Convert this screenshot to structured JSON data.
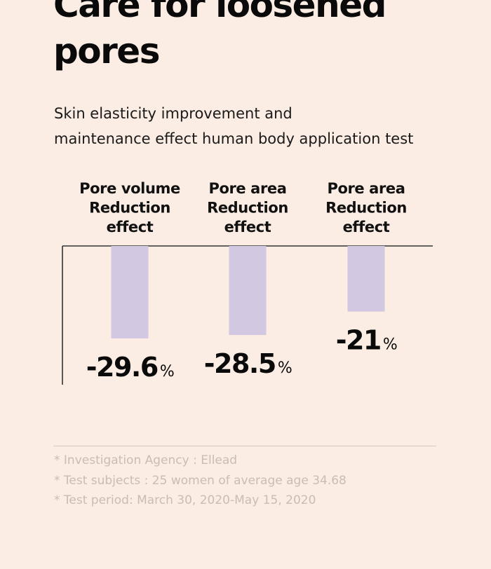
{
  "title_lines": [
    "Care for loosened",
    "pores"
  ],
  "subtitle_lines": [
    "Skin elasticity improvement and",
    "maintenance effect human body application test"
  ],
  "chart_data": {
    "type": "bar",
    "orientation": "downward",
    "categories": [
      [
        "Pore volume",
        "Reduction",
        "effect"
      ],
      [
        "Pore area",
        "Reduction",
        "effect"
      ],
      [
        "Pore area",
        "Reduction",
        "effect"
      ]
    ],
    "values": [
      -29.6,
      -28.5,
      -21
    ],
    "value_labels": [
      "-29.6",
      "-28.5",
      "-21"
    ],
    "unit": "%",
    "ylim": [
      -35,
      0
    ],
    "bar_color": "#d2c8e1",
    "axis_color": "#333333",
    "grid": false,
    "xlabel": "",
    "ylabel": ""
  },
  "notes": [
    "* Investigation Agency : Ellead",
    "* Test subjects : 25 women of average age 34.68",
    "* Test period: March 30, 2020-May 15, 2020"
  ],
  "colors": {
    "background": "#fbede3",
    "text": "#111111",
    "note_text": "#cbbcb3",
    "divider": "#d3c8c2"
  }
}
